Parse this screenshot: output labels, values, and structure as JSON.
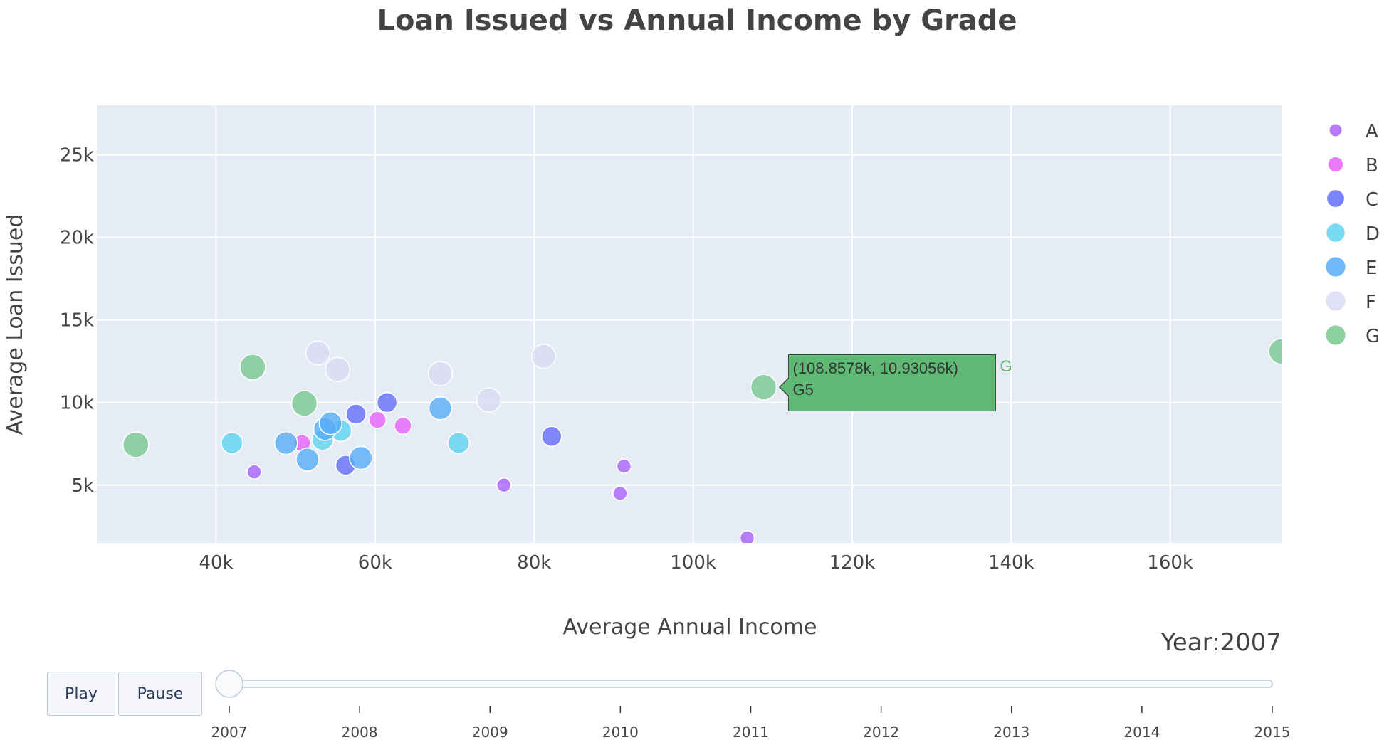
{
  "chart_data": {
    "type": "scatter",
    "title": "Loan Issued vs Annual Income by Grade",
    "xlabel": "Average Annual Income",
    "ylabel": "Average Loan Issued",
    "xlim": [
      25000,
      174000
    ],
    "ylim": [
      1500,
      28000
    ],
    "xticks": [
      40000,
      60000,
      80000,
      100000,
      120000,
      140000,
      160000
    ],
    "xtick_labels": [
      "40k",
      "60k",
      "80k",
      "100k",
      "120k",
      "140k",
      "160k"
    ],
    "yticks": [
      5000,
      10000,
      15000,
      20000,
      25000
    ],
    "ytick_labels": [
      "5k",
      "10k",
      "15k",
      "20k",
      "25k"
    ],
    "grid": true,
    "legend_position": "right",
    "series": [
      {
        "name": "A",
        "color": "#ab63fa",
        "size": 10,
        "points": [
          {
            "x": 44800,
            "y": 5800
          },
          {
            "x": 76200,
            "y": 5000
          },
          {
            "x": 90800,
            "y": 4500
          },
          {
            "x": 91300,
            "y": 6150
          },
          {
            "x": 106800,
            "y": 1800
          }
        ]
      },
      {
        "name": "B",
        "color": "#e763fa",
        "size": 12,
        "points": [
          {
            "x": 50800,
            "y": 7550
          },
          {
            "x": 60300,
            "y": 8950
          },
          {
            "x": 63500,
            "y": 8600
          }
        ]
      },
      {
        "name": "C",
        "color": "#636efa",
        "size": 14,
        "points": [
          {
            "x": 56300,
            "y": 6200
          },
          {
            "x": 57600,
            "y": 9300
          },
          {
            "x": 61500,
            "y": 10000
          },
          {
            "x": 82200,
            "y": 7950
          }
        ]
      },
      {
        "name": "D",
        "color": "#5fd3f0",
        "size": 15,
        "points": [
          {
            "x": 42000,
            "y": 7550
          },
          {
            "x": 53400,
            "y": 7750
          },
          {
            "x": 55700,
            "y": 8300
          },
          {
            "x": 70500,
            "y": 7550
          }
        ]
      },
      {
        "name": "E",
        "color": "#57aef8",
        "size": 16,
        "points": [
          {
            "x": 48800,
            "y": 7550
          },
          {
            "x": 51500,
            "y": 6550
          },
          {
            "x": 53700,
            "y": 8400
          },
          {
            "x": 54400,
            "y": 8750
          },
          {
            "x": 58200,
            "y": 6650
          },
          {
            "x": 68200,
            "y": 9650
          }
        ]
      },
      {
        "name": "F",
        "color": "#dadcf3",
        "size": 17,
        "points": [
          {
            "x": 52800,
            "y": 13000
          },
          {
            "x": 55300,
            "y": 12000
          },
          {
            "x": 68200,
            "y": 11750
          },
          {
            "x": 74300,
            "y": 10150
          },
          {
            "x": 81200,
            "y": 12800
          }
        ]
      },
      {
        "name": "G",
        "color": "#78c98f",
        "size": 18,
        "points": [
          {
            "x": 29900,
            "y": 7450
          },
          {
            "x": 44600,
            "y": 12150
          },
          {
            "x": 51100,
            "y": 9950
          },
          {
            "x": 108858,
            "y": 10931
          },
          {
            "x": 174000,
            "y": 13100
          }
        ]
      }
    ],
    "hover": {
      "series": "G",
      "point_index": 3,
      "coords_text": "(108.8578k, 10.93056k)",
      "label": "G5",
      "series_label": "G"
    }
  },
  "animation": {
    "current_label": "Year:2007",
    "play_label": "Play",
    "pause_label": "Pause",
    "steps": [
      "2007",
      "2008",
      "2009",
      "2010",
      "2011",
      "2012",
      "2013",
      "2014",
      "2015"
    ],
    "current_index": 0
  }
}
